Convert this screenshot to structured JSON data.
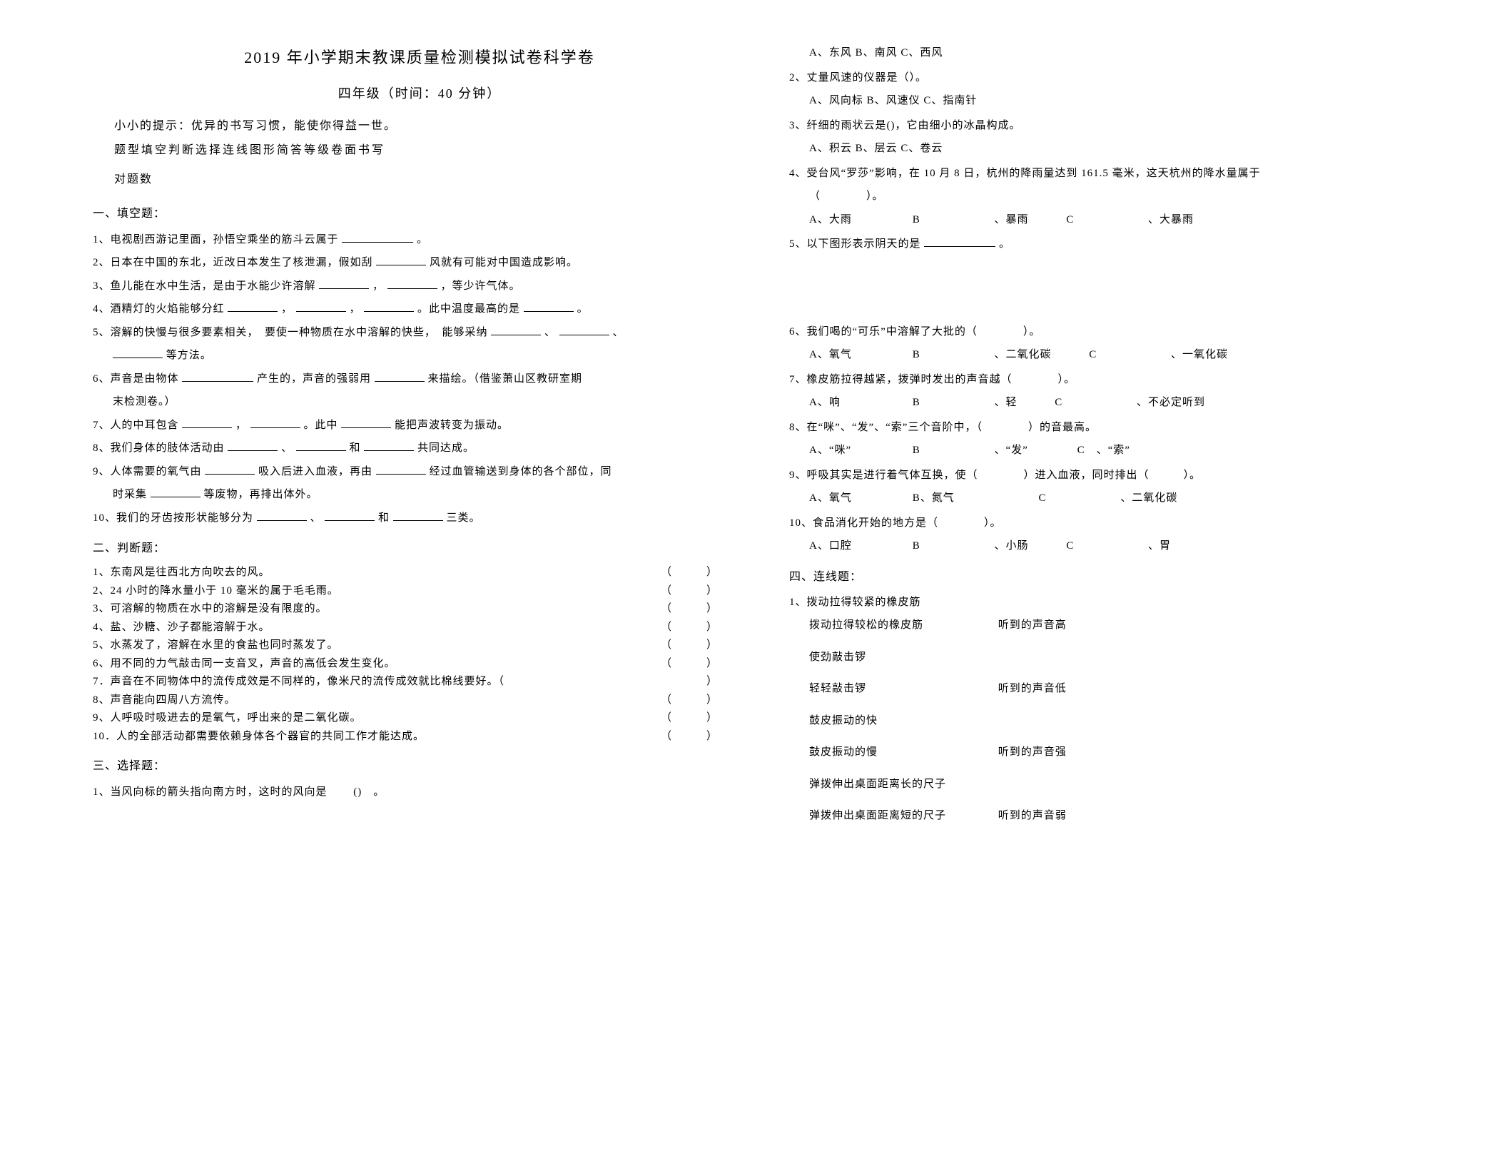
{
  "header": {
    "title": "2019 年小学期末教课质量检测模拟试卷科学卷",
    "subtitle": "四年级（时间：40 分钟）",
    "hint": "小小的提示：优异的书写习惯，能使你得益一世。",
    "typerow": "题型填空判断选择连线图形简答等级卷面书写",
    "countrow": "对题数"
  },
  "sections": {
    "fill": "一、填空题：",
    "judge": "二、判断题：",
    "choice": "三、选择题：",
    "connect": "四、连线题："
  },
  "fill": {
    "q1": "1、电视剧西游记里面，孙悟空乘坐的筋斗云属于",
    "q1end": "。",
    "q2": "2、日本在中国的东北，近改日本发生了核泄漏，假如刮",
    "q2end": "风就有可能对中国造成影响。",
    "q3": "3、鱼儿能在水中生活，是由于水能少许溶解",
    "q3mid": "，",
    "q3end": "，等少许气体。",
    "q4": "4、酒精灯的火焰能够分红",
    "q4a": "，",
    "q4b": "，",
    "q4c": "。此中温度最高的是",
    "q4end": "。",
    "q5": "5、溶解的快慢与很多要素相关，　要使一种物质在水中溶解的快些，　能够采纳",
    "q5a": "、",
    "q5b": "、",
    "q5end": "等方法。",
    "q6": "6、声音是由物体",
    "q6a": "产生的，声音的强弱用",
    "q6end": "来描绘。（借鉴萧山区教研室期",
    "q6end2": "末检测卷。）",
    "q7": "7、人的中耳包含",
    "q7a": "，",
    "q7b": "。此中",
    "q7end": "能把声波转变为振动。",
    "q8": "8、我们身体的肢体活动由",
    "q8a": "、",
    "q8b": "和",
    "q8end": "共同达成。",
    "q9": "9、人体需要的氧气由",
    "q9a": "吸入后进入血液，再由",
    "q9end": "经过血管输送到身体的各个部位，同",
    "q9_2": "时采集",
    "q9_2end": "等废物，再排出体外。",
    "q10": "10、我们的牙齿按形状能够分为",
    "q10a": "、",
    "q10b": "和",
    "q10end": "三类。"
  },
  "judge": {
    "q1": "1、东南风是往西北方向吹去的风。",
    "q2": "2、24 小时的降水量小于 10 毫米的属于毛毛雨。",
    "q3": "3、可溶解的物质在水中的溶解是没有限度的。",
    "q4": "4、盐、沙糖、沙子都能溶解于水。",
    "q5": "5、水蒸发了，溶解在水里的食盐也同时蒸发了。",
    "q6": "6、用不同的力气敲击同一支音叉，声音的高低会发生变化。",
    "q7": "7．声音在不同物体中的流传成效是不同样的，像米尺的流传成效就比棉线要好。（",
    "q7end": "）",
    "q8": "8、声音能向四周八方流传。",
    "q9": "9、人呼吸时吸进去的是氧气，呼出来的是二氧化碳。",
    "q10": "10．人的全部活动都需要依赖身体各个器官的共同工作才能达成。",
    "paren": "（　　　）"
  },
  "choice": {
    "q1": "1、当风向标的箭头指向南方时，这时的风向是",
    "q1paren": "()　。",
    "q1opts": "A、东风 B、南风 C、西风",
    "q2": "2、丈量风速的仪器是（）。",
    "q2opts": "A、风向标 B、风速仪 C、指南针",
    "q3": "3、纤细的雨状云是()，它由细小的冰晶构成。",
    "q3opts": "A、积云 B、层云 C、卷云",
    "q4": "4、受台风“罗莎”影响，在 10 月 8 日，杭州的降雨量达到 161.5 毫米，这天杭州的降水量属于",
    "q4paren": "（　　　　）。",
    "q4a": "A、大雨",
    "q4b": "B",
    "q4b2": "、暴雨",
    "q4c": "C",
    "q4c2": "、大暴雨",
    "q5": "5、以下图形表示阴天的是",
    "q5end": "。",
    "q6": "6、我们喝的“可乐”中溶解了大批的（　　　　）。",
    "q6a": "A、氧气",
    "q6b": "B",
    "q6b2": "、二氧化碳",
    "q6c": "C",
    "q6c2": "、一氧化碳",
    "q7": "7、橡皮筋拉得越紧，拨弹时发出的声音越（　　　　）。",
    "q7a": "A、响",
    "q7b": "B",
    "q7b2": "、轻",
    "q7c": "C",
    "q7c2": "、不必定听到",
    "q8": "8、在“咪”、“发”、“索”三个音阶中，（　　　　）的音最高。",
    "q8a": "A、“咪”",
    "q8b": "B",
    "q8b2": "、“发”",
    "q8c": "C　、“索”",
    "q9": "9、呼吸其实是进行着气体互换，使（　　　　）进入血液，同时排出（　　　）。",
    "q9a": "A、氧气",
    "q9b": "B、氮气",
    "q9c": "C",
    "q9c2": "、二氧化碳",
    "q10": "10、食品消化开始的地方是（　　　　）。",
    "q10a": "A、口腔",
    "q10b": "B",
    "q10b2": "、小肠",
    "q10c": "C",
    "q10c2": "、胃"
  },
  "connect": {
    "q1": "1、拨动拉得较紧的橡皮筋",
    "l1": "拨动拉得较松的橡皮筋",
    "r1": "听到的声音高",
    "l2": "使劲敲击锣",
    "l3": "轻轻敲击锣",
    "r3": "听到的声音低",
    "l4": "鼓皮振动的快",
    "l5": "鼓皮振动的慢",
    "r5": "听到的声音强",
    "l6": "弹拨伸出桌面距离长的尺子",
    "l7": "弹拨伸出桌面距离短的尺子",
    "r7": "听到的声音弱"
  }
}
